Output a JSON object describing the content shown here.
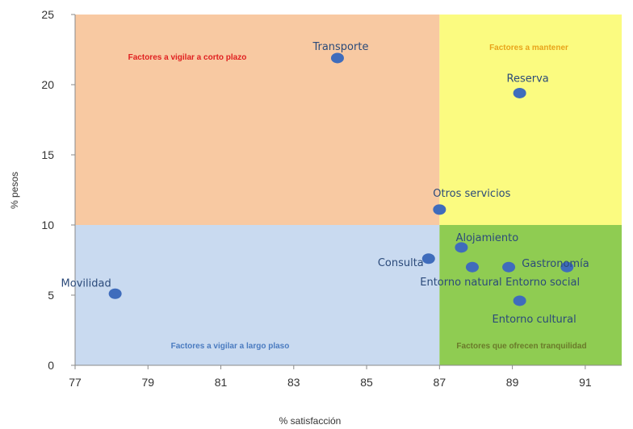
{
  "chart_data": {
    "type": "scatter",
    "title": "",
    "xlabel": "% satisfacción",
    "ylabel": "% pesos",
    "xlim": [
      77,
      92
    ],
    "ylim": [
      0,
      25
    ],
    "xticks": [
      77,
      79,
      81,
      83,
      85,
      87,
      89,
      91
    ],
    "yticks": [
      0,
      5,
      10,
      15,
      20,
      25
    ],
    "x_tick_labels": [
      "77",
      "79",
      "81",
      "83",
      "85",
      "87",
      "89",
      "91"
    ],
    "y_tick_labels": [
      "0",
      "5",
      "10",
      "15",
      "20",
      "25"
    ],
    "grid": false,
    "thresholds": {
      "x": 87,
      "y": 10
    },
    "marker_color": "#3f6cbc",
    "label_color": "#2b4a7a",
    "quadrants": [
      {
        "label": "Factores a vigilar a corto plazo",
        "region": "top-left",
        "fill": "#f8c9a2",
        "text_color": "#e02020"
      },
      {
        "label": "Factores a mantener",
        "region": "top-right",
        "fill": "#fbfb80",
        "text_color": "#e8a41a"
      },
      {
        "label": "Factores a vigilar a largo plaso",
        "region": "bottom-left",
        "fill": "#c9daf0",
        "text_color": "#4a7bc0"
      },
      {
        "label": "Factores que ofrecen tranquilidad",
        "region": "bottom-right",
        "fill": "#8fcc52",
        "text_color": "#6a7a2a"
      }
    ],
    "points": [
      {
        "name": "Transporte",
        "x": 84.2,
        "y": 21.9
      },
      {
        "name": "Reserva",
        "x": 89.2,
        "y": 19.4
      },
      {
        "name": "Otros servicios",
        "x": 87.0,
        "y": 11.1
      },
      {
        "name": "Alojamiento",
        "x": 87.6,
        "y": 8.4
      },
      {
        "name": "Consulta",
        "x": 86.7,
        "y": 7.6
      },
      {
        "name": "Entorno natural",
        "x": 87.9,
        "y": 7.0
      },
      {
        "name": "Gastronomía",
        "x": 90.5,
        "y": 7.0
      },
      {
        "name": "Entorno social",
        "x": 88.9,
        "y": 7.0
      },
      {
        "name": "Entorno cultural",
        "x": 89.2,
        "y": 4.6
      },
      {
        "name": "Movilidad",
        "x": 78.1,
        "y": 5.1
      }
    ]
  }
}
